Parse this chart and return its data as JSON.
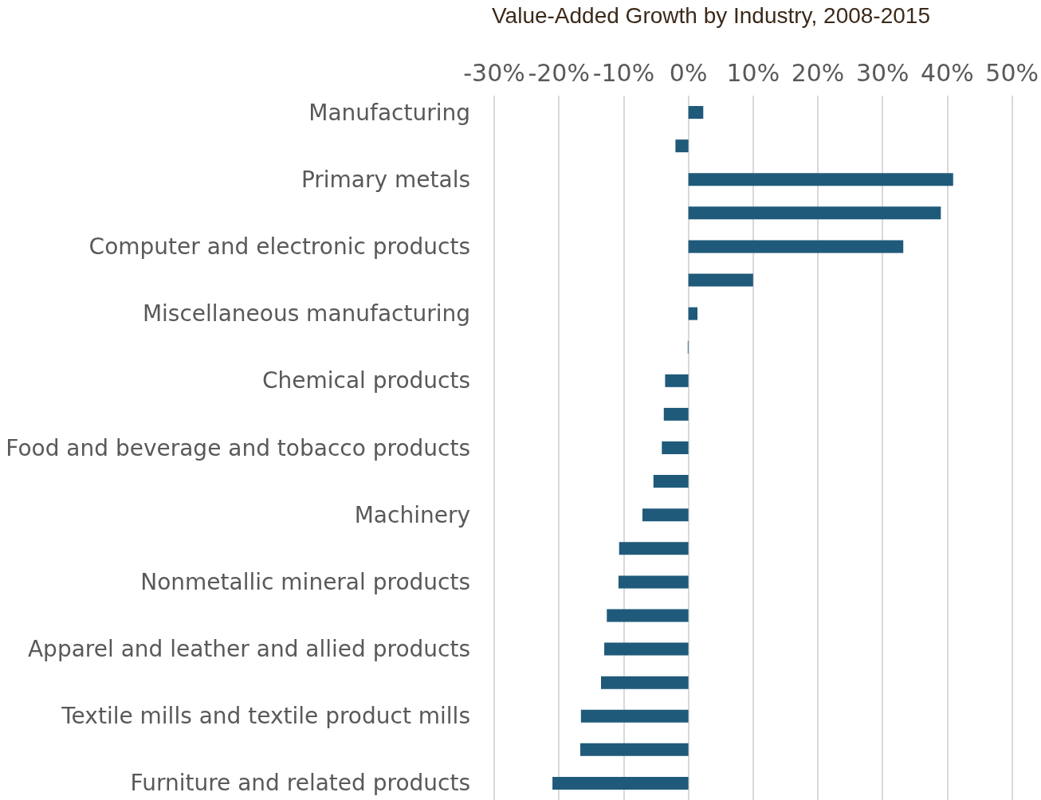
{
  "chart_data": {
    "type": "bar",
    "orientation": "horizontal",
    "title": "Value-Added Growth by Industry, 2008-2015",
    "categories": [
      "Manufacturing",
      null,
      "Primary metals",
      null,
      "Computer and electronic products",
      null,
      "Miscellaneous manufacturing",
      null,
      "Chemical products",
      null,
      "Food and beverage and tobacco products",
      null,
      "Machinery",
      null,
      "Nonmetallic mineral products",
      null,
      "Apparel and leather and allied products",
      null,
      "Textile mills and textile product mills",
      null,
      "Furniture and related products"
    ],
    "values": [
      2.3,
      -2,
      40.9,
      39,
      33.2,
      10,
      1.4,
      -0.1,
      -3.6,
      -3.8,
      -4.1,
      -5.4,
      -7.1,
      -10.7,
      -10.8,
      -12.6,
      -13,
      -13.5,
      -16.6,
      -16.7,
      -21
    ],
    "color": "#1f5a7a",
    "xlim": [
      -30,
      50
    ],
    "xticks": [
      {
        "value": -30,
        "label": "-30%"
      },
      {
        "value": -20,
        "label": "-20%"
      },
      {
        "value": -10,
        "label": "-10%"
      },
      {
        "value": 0,
        "label": "0%"
      },
      {
        "value": 10,
        "label": "10%"
      },
      {
        "value": 20,
        "label": "20%"
      },
      {
        "value": 30,
        "label": "30%"
      },
      {
        "value": 40,
        "label": "40%"
      },
      {
        "value": 50,
        "label": "50%"
      }
    ],
    "grid": "x"
  }
}
